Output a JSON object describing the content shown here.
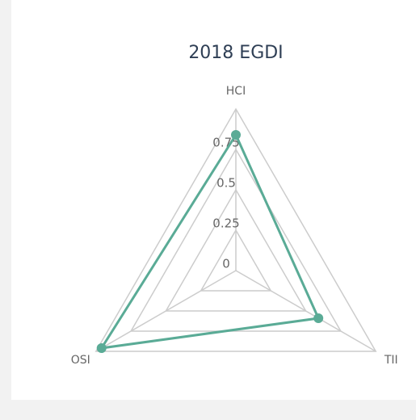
{
  "chart_data": {
    "type": "radar",
    "title": "2018 EGDI",
    "categories": [
      "HCI",
      "TII",
      "OSI"
    ],
    "series": [
      {
        "color": "#5aab96",
        "values": [
          0.84,
          0.59,
          0.96
        ]
      }
    ],
    "ylim": [
      0,
      1
    ],
    "yticks": [
      0,
      0.25,
      0.5,
      0.75
    ],
    "grid": true
  }
}
